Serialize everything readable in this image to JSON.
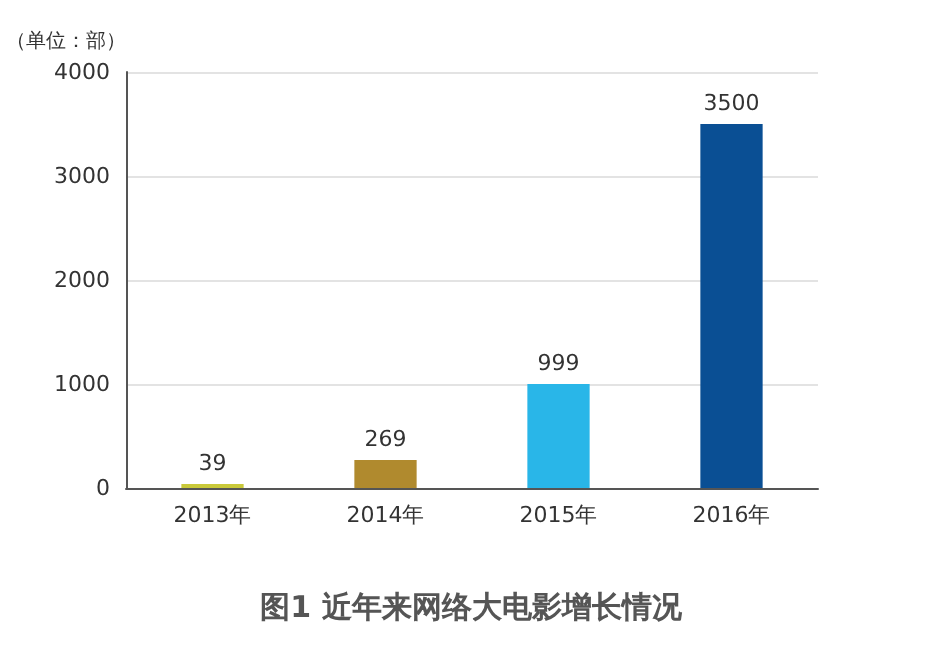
{
  "chart_data": {
    "type": "bar",
    "title": "图1 近年来网络大电影增长情况",
    "ylabel": "（单位：部）",
    "categories": [
      "2013年",
      "2014年",
      "2015年",
      "2016年"
    ],
    "values": [
      39,
      269,
      999,
      3500
    ],
    "colors": [
      "#c9c93a",
      "#b08a2e",
      "#29b6e8",
      "#0a4f94"
    ],
    "ylim": [
      0,
      4000
    ],
    "yticks": [
      0,
      1000,
      2000,
      3000,
      4000
    ],
    "grid": "y",
    "data_labels": true
  }
}
